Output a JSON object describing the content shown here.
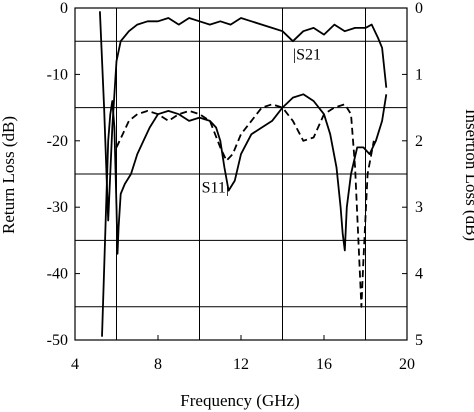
{
  "chart_data": {
    "type": "line",
    "title": "",
    "xlabel": "Frequency (GHz)",
    "ylabel_left": "Return Loss (dB)",
    "ylabel_right": "Insertion Loss (dB)",
    "xlim": [
      4,
      20
    ],
    "ylim_left": [
      -50,
      0
    ],
    "ylim_right": [
      -5,
      0
    ],
    "right_axis_inverted_labels": true,
    "x_ticks": [
      4,
      8,
      12,
      16,
      20
    ],
    "x_tick_labels": [
      "4",
      "8",
      "12",
      "16",
      "20"
    ],
    "y_left_ticks": [
      0,
      -10,
      -20,
      -30,
      -40,
      -50
    ],
    "y_left_tick_labels": [
      "0",
      "-10",
      "-20",
      "-30",
      "-40",
      "-50"
    ],
    "y_right_ticks": [
      0,
      -1,
      -2,
      -3,
      -4,
      -5
    ],
    "y_right_tick_labels": [
      "0",
      "1",
      "2",
      "3",
      "4",
      "5"
    ],
    "grid": {
      "vertical_lines_x": [
        6,
        10,
        14,
        18
      ],
      "horizontal_lines_y": [
        -5,
        -15,
        -25,
        -35,
        -45
      ]
    },
    "annotations": [
      {
        "text": "|S21",
        "x": 14.5,
        "y": -7
      },
      {
        "text": "S11|",
        "x": 10.1,
        "y": -27
      }
    ],
    "series": [
      {
        "style": "solid",
        "axis": "right",
        "x": [
          5.2,
          5.4,
          5.6,
          5.8,
          6.0,
          6.2,
          6.6,
          7.0,
          7.5,
          8.0,
          8.5,
          9.0,
          9.5,
          10.0,
          10.5,
          11.0,
          11.5,
          12.0,
          12.5,
          13.0,
          13.5,
          14.0,
          14.5,
          15.0,
          15.5,
          16.0,
          16.5,
          17.0,
          17.5,
          18.0,
          18.3,
          18.6,
          18.8,
          19.0
        ],
        "values": [
          -0.05,
          -1.5,
          -3.2,
          -1.8,
          -0.8,
          -0.5,
          -0.35,
          -0.25,
          -0.2,
          -0.2,
          -0.15,
          -0.25,
          -0.15,
          -0.2,
          -0.25,
          -0.2,
          -0.25,
          -0.15,
          -0.2,
          -0.25,
          -0.3,
          -0.35,
          -0.5,
          -0.35,
          -0.3,
          -0.4,
          -0.25,
          -0.35,
          -0.3,
          -0.3,
          -0.25,
          -0.45,
          -0.6,
          -1.2
        ]
      },
      {
        "style": "solid",
        "axis": "left",
        "x": [
          5.3,
          5.5,
          5.6,
          5.7,
          5.8,
          5.9,
          6.0,
          6.05,
          6.1,
          6.2,
          6.4,
          6.7,
          7.0,
          7.3,
          7.6,
          8.0,
          8.5,
          9.0,
          9.5,
          10.0,
          10.5,
          10.8,
          11.0,
          11.2,
          11.4,
          11.7,
          12.0,
          12.5,
          13.0,
          13.5,
          14.0,
          14.5,
          15.0,
          15.5,
          16.0,
          16.3,
          16.6,
          16.8,
          16.9,
          17.0,
          17.1,
          17.3,
          17.6,
          17.9,
          18.2,
          18.5,
          18.8,
          19.0
        ],
        "values": [
          -49.5,
          -30,
          -20,
          -16,
          -14,
          -18,
          -30,
          -37,
          -33,
          -28,
          -26.5,
          -25,
          -22,
          -20,
          -18,
          -16,
          -15.5,
          -16,
          -17,
          -16.5,
          -17,
          -18,
          -20,
          -24,
          -27.5,
          -26,
          -22,
          -19,
          -18,
          -17,
          -15,
          -13.5,
          -13,
          -14,
          -16,
          -19,
          -24,
          -30,
          -34,
          -36.5,
          -30,
          -25,
          -21,
          -21,
          -22,
          -20,
          -17,
          -13
        ]
      },
      {
        "style": "dashed",
        "axis": "left",
        "x": [
          6.0,
          6.3,
          6.6,
          7.0,
          7.5,
          8.0,
          8.5,
          9.0,
          9.5,
          10.0,
          10.5,
          11.0,
          11.3,
          11.6,
          12.0,
          12.5,
          13.0,
          13.5,
          14.0,
          14.5,
          15.0,
          15.5,
          16.0,
          16.5,
          17.0,
          17.3,
          17.5,
          17.7,
          17.8,
          17.9,
          18.1,
          18.4
        ],
        "values": [
          -21,
          -19,
          -17,
          -16,
          -15.5,
          -16,
          -17,
          -16,
          -15.5,
          -16,
          -17,
          -21,
          -23,
          -22,
          -19,
          -17,
          -15,
          -14.5,
          -15,
          -17,
          -20,
          -19.5,
          -16,
          -15,
          -14.5,
          -16,
          -24,
          -38,
          -45,
          -38,
          -25,
          -20
        ]
      }
    ]
  }
}
